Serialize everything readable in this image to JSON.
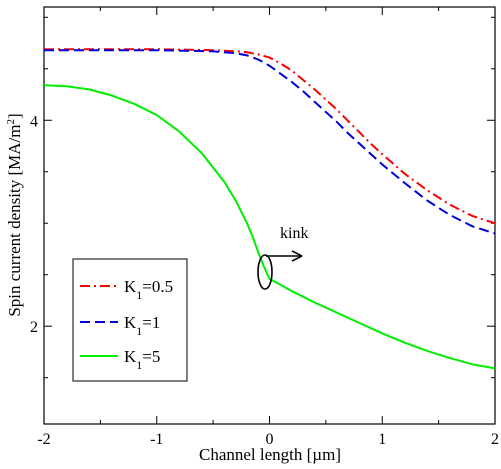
{
  "chart_data": {
    "type": "line",
    "title": "",
    "xlabel": "Channel length [µm]",
    "ylabel_main": "Spin current density [MA/m",
    "ylabel_sup": "2",
    "ylabel_end": "]",
    "xlim": [
      -2,
      2
    ],
    "ylim": [
      1.05,
      5.1
    ],
    "xticks": [
      -2,
      -1,
      0,
      1,
      2
    ],
    "xtick_labels": [
      "-2",
      "-1",
      "0",
      "1",
      "2"
    ],
    "yticks": [
      2,
      4
    ],
    "ytick_labels": [
      "2",
      "4"
    ],
    "grid": false,
    "legend_position": "lower-left",
    "series": [
      {
        "name_main": "K",
        "name_sub": "1",
        "name_rest": "=0.5",
        "color": "#ff0000",
        "dash": "dashdot",
        "x": [
          -2,
          -1.5,
          -1,
          -0.5,
          -0.3,
          -0.2,
          -0.1,
          0,
          0.1,
          0.2,
          0.3,
          0.4,
          0.5,
          0.6,
          0.7,
          0.8,
          0.9,
          1.0,
          1.2,
          1.4,
          1.6,
          1.8,
          2.0
        ],
        "y": [
          4.69,
          4.69,
          4.69,
          4.68,
          4.67,
          4.66,
          4.64,
          4.61,
          4.55,
          4.48,
          4.39,
          4.3,
          4.2,
          4.1,
          3.99,
          3.88,
          3.77,
          3.67,
          3.48,
          3.32,
          3.18,
          3.07,
          3.0
        ]
      },
      {
        "name_main": "K",
        "name_sub": "1",
        "name_rest": "=1",
        "color": "#0000dd",
        "dash": "dashed",
        "x": [
          -2,
          -1.5,
          -1,
          -0.5,
          -0.3,
          -0.2,
          -0.1,
          0,
          0.1,
          0.2,
          0.3,
          0.4,
          0.5,
          0.6,
          0.7,
          0.8,
          0.9,
          1.0,
          1.2,
          1.4,
          1.6,
          1.8,
          2.0
        ],
        "y": [
          4.68,
          4.68,
          4.68,
          4.67,
          4.65,
          4.63,
          4.59,
          4.53,
          4.45,
          4.37,
          4.28,
          4.18,
          4.08,
          3.98,
          3.87,
          3.77,
          3.67,
          3.57,
          3.39,
          3.22,
          3.08,
          2.97,
          2.9
        ]
      },
      {
        "name_main": "K",
        "name_sub": "1",
        "name_rest": "=5",
        "color": "#00ee00",
        "dash": "solid",
        "x": [
          -2,
          -1.8,
          -1.6,
          -1.4,
          -1.2,
          -1.0,
          -0.8,
          -0.6,
          -0.4,
          -0.3,
          -0.2,
          -0.15,
          -0.1,
          -0.05,
          0,
          0.2,
          0.4,
          0.6,
          0.8,
          1.0,
          1.2,
          1.4,
          1.6,
          1.8,
          2.0
        ],
        "y": [
          4.34,
          4.33,
          4.3,
          4.24,
          4.16,
          4.05,
          3.89,
          3.68,
          3.4,
          3.22,
          3.0,
          2.87,
          2.72,
          2.58,
          2.46,
          2.34,
          2.23,
          2.13,
          2.03,
          1.93,
          1.84,
          1.76,
          1.69,
          1.63,
          1.59
        ]
      }
    ],
    "annotations": [
      {
        "text": "kink",
        "x": 0.25,
        "y": 2.78
      }
    ]
  }
}
